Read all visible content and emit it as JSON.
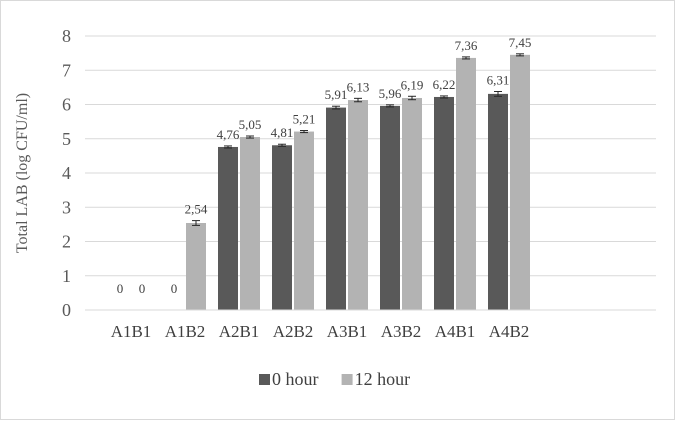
{
  "chart_data": {
    "type": "bar",
    "title": "",
    "xlabel": "",
    "ylabel": "Total LAB (log CFU/ml)",
    "ylim": [
      0,
      8
    ],
    "yticks": [
      0,
      1,
      2,
      3,
      4,
      5,
      6,
      7,
      8
    ],
    "grid": true,
    "legend_position": "bottom",
    "categories": [
      "A1B1",
      "A1B2",
      "A2B1",
      "A2B2",
      "A3B1",
      "A3B2",
      "A4B1",
      "A4B2"
    ],
    "series": [
      {
        "name": "0 hour",
        "color": "#595959",
        "values": [
          0,
          0,
          4.76,
          4.81,
          5.91,
          5.96,
          6.22,
          6.31
        ],
        "labels": [
          "0",
          "0",
          "4,76",
          "4,81",
          "5,91",
          "5,96",
          "6,22",
          "6,31"
        ],
        "errors": [
          0,
          0,
          0.03,
          0.03,
          0.04,
          0.03,
          0.03,
          0.07
        ]
      },
      {
        "name": "12 hour",
        "color": "#b3b3b3",
        "values": [
          0,
          2.54,
          5.05,
          5.21,
          6.13,
          6.19,
          7.36,
          7.45
        ],
        "labels": [
          "0",
          "2,54",
          "5,05",
          "5,21",
          "6,13",
          "6,19",
          "7,36",
          "7,45"
        ],
        "errors": [
          0,
          0.07,
          0.03,
          0.03,
          0.05,
          0.05,
          0.03,
          0.03
        ]
      }
    ]
  }
}
